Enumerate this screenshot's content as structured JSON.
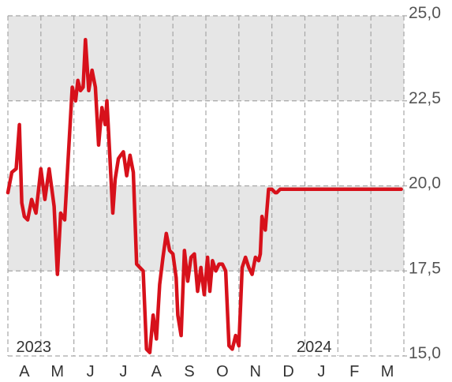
{
  "chart_data": {
    "type": "line",
    "ylim": [
      15.0,
      25.0
    ],
    "y_ticks": [
      "25,0",
      "22,5",
      "20,0",
      "17,5",
      "15,0"
    ],
    "y_tick_values": [
      25.0,
      22.5,
      20.0,
      17.5,
      15.0
    ],
    "months": [
      "A",
      "M",
      "J",
      "J",
      "A",
      "S",
      "O",
      "N",
      "D",
      "J",
      "F",
      "M"
    ],
    "year_labels": [
      "2023",
      "2024"
    ],
    "grid": true,
    "shaded_bands": [
      [
        22.5,
        25.0
      ],
      [
        17.5,
        20.0
      ]
    ],
    "colors": {
      "line": "#d7111b",
      "band": "#e6e6e6",
      "grid": "#a6a6a6"
    },
    "series": [
      {
        "x": [
          0.0,
          0.12,
          0.25,
          0.35,
          0.42,
          0.5,
          0.6,
          0.72,
          0.85,
          1.0,
          1.12,
          1.25,
          1.4,
          1.5,
          1.6,
          1.72,
          1.85,
          1.95,
          2.05,
          2.12,
          2.2,
          2.28,
          2.35,
          2.45,
          2.55,
          2.65,
          2.75,
          2.85,
          2.95,
          3.0,
          3.05,
          3.12,
          3.18,
          3.25,
          3.35,
          3.42,
          3.5,
          3.6,
          3.7,
          3.8,
          3.9,
          4.0,
          4.1,
          4.2,
          4.3,
          4.4,
          4.5,
          4.6,
          4.7,
          4.8,
          4.9,
          5.0,
          5.1,
          5.15,
          5.25,
          5.35,
          5.45,
          5.55,
          5.65,
          5.75,
          5.85,
          5.95,
          6.05,
          6.12,
          6.2,
          6.3,
          6.4,
          6.5,
          6.6,
          6.7,
          6.8,
          6.9,
          7.0,
          7.1,
          7.2,
          7.3,
          7.4,
          7.5,
          7.6,
          7.65,
          7.7,
          7.8,
          7.9,
          8.0,
          8.1,
          8.15,
          8.25,
          8.35,
          8.45,
          8.55,
          8.65,
          8.75,
          8.85,
          8.95,
          9.05,
          9.15,
          9.25,
          9.35,
          9.45,
          9.55,
          9.65,
          9.75,
          9.85,
          9.95,
          10.05,
          10.12,
          10.2,
          10.3,
          10.4,
          10.5,
          10.6,
          10.7,
          10.8,
          10.9,
          11.0,
          11.1,
          11.2,
          11.3,
          11.4,
          11.5,
          11.6,
          11.7,
          11.8,
          11.92
        ],
        "values": [
          19.8,
          20.4,
          20.5,
          21.8,
          19.5,
          19.1,
          19.0,
          19.6,
          19.2,
          20.5,
          19.6,
          20.5,
          19.4,
          17.4,
          19.2,
          19.0,
          21.2,
          22.9,
          22.5,
          23.1,
          22.8,
          22.9,
          24.3,
          22.8,
          23.4,
          22.9,
          21.2,
          22.3,
          21.8,
          22.5,
          21.6,
          20.3,
          19.2,
          20.2,
          20.8,
          20.9,
          21.0,
          20.3,
          20.9,
          20.4,
          17.7,
          17.6,
          17.5,
          15.2,
          15.1,
          16.2,
          15.5,
          17.1,
          17.9,
          18.6,
          18.1,
          18.0,
          17.3,
          16.2,
          15.6,
          18.1,
          17.2,
          17.9,
          18.0,
          16.9,
          17.6,
          16.8,
          17.9,
          16.9,
          17.8,
          17.5,
          17.7,
          17.7,
          17.5,
          15.3,
          15.2,
          15.6,
          15.3,
          17.6,
          17.9,
          17.6,
          17.4,
          17.9,
          17.8,
          18.0,
          19.1,
          18.7,
          19.9,
          19.9,
          19.8,
          19.8,
          19.9,
          19.9,
          19.9,
          19.9,
          19.9,
          19.9,
          19.9,
          19.9,
          19.9,
          19.9,
          19.9,
          19.9,
          19.9,
          19.9,
          19.9,
          19.9,
          19.9,
          19.9,
          19.9,
          19.9,
          19.9,
          19.9,
          19.9,
          19.9,
          19.9,
          19.9,
          19.9,
          19.9,
          19.9,
          19.9,
          19.9,
          19.9,
          19.9,
          19.9,
          19.9,
          19.9,
          19.9,
          19.9
        ]
      }
    ]
  }
}
